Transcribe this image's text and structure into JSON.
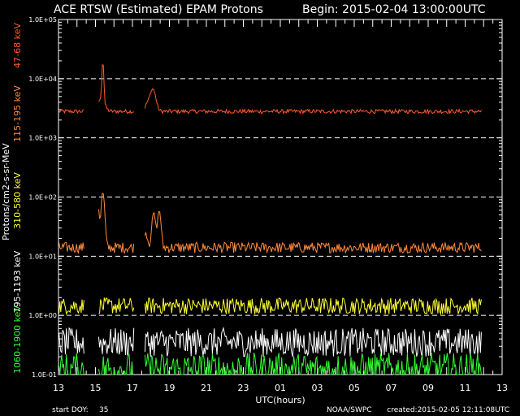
{
  "chart_data": {
    "type": "line",
    "title": "ACE RTSW (Estimated) EPAM Protons",
    "begin_label": "Begin: 2015-02-04 13:00:00UTC",
    "xlabel": "UTC(hours)",
    "ylabel": "Protons/cm2-s-sr-MeV",
    "yscale": "log",
    "ylim": [
      0.1,
      100000
    ],
    "y_ticks": [
      {
        "value": 0.1,
        "label": "1.0E-01"
      },
      {
        "value": 1,
        "label": "1.0E+00"
      },
      {
        "value": 10,
        "label": "1.0E+01"
      },
      {
        "value": 100,
        "label": "1.0E+02"
      },
      {
        "value": 1000,
        "label": "1.0E+03"
      },
      {
        "value": 10000,
        "label": "1.0E+04"
      },
      {
        "value": 100000,
        "label": "1.0E+05"
      }
    ],
    "dashed_grid_at": [
      1,
      10,
      100,
      1000,
      10000
    ],
    "x_ticks": [
      "13",
      "15",
      "17",
      "19",
      "21",
      "23",
      "01",
      "03",
      "05",
      "07",
      "09",
      "11",
      "13"
    ],
    "xlim_hours": [
      0,
      48
    ],
    "data_gaps_hours": [
      [
        2.8,
        4.3
      ],
      [
        8.2,
        9.3
      ]
    ],
    "series": [
      {
        "name": "47-68 keV",
        "color": "#ff5a2a",
        "base": 2800,
        "noise": 0.05,
        "peaks": [
          [
            3.7,
            1.1,
            0.25
          ],
          [
            4.8,
            5.5,
            0.12
          ],
          [
            4.6,
            0.6,
            0.5
          ],
          [
            10.2,
            1.4,
            0.4
          ],
          [
            9.6,
            0.3,
            0.3
          ]
        ]
      },
      {
        "name": "115-195 keV",
        "color": "#ff8a3a",
        "base": 14,
        "noise": 0.13,
        "peaks": [
          [
            3.4,
            0.6,
            0.3
          ],
          [
            4.2,
            5.5,
            0.22
          ],
          [
            4.8,
            7.5,
            0.22
          ],
          [
            9.4,
            0.8,
            0.3
          ],
          [
            10.3,
            2.8,
            0.25
          ],
          [
            10.9,
            3.2,
            0.22
          ]
        ]
      },
      {
        "name": "310-580 keV",
        "color": "#ffff33",
        "base": 1.45,
        "noise": 0.2,
        "peaks": []
      },
      {
        "name": "795-1193 keV",
        "color": "#ffffff",
        "base": 0.35,
        "noise": 0.35,
        "peaks": []
      },
      {
        "name": "1060-1900 keV",
        "color": "#33ff33",
        "base": 0.12,
        "noise": 0.42,
        "peaks": []
      }
    ],
    "legend_labels": [
      {
        "text": "47-68 keV",
        "color": "#ff5a2a"
      },
      {
        "text": "115-195 keV",
        "color": "#ff8a3a"
      },
      {
        "text": "310-580 keV",
        "color": "#ffff33"
      },
      {
        "text": "795-1193 keV",
        "color": "#ffffff"
      },
      {
        "text": "1060-1900 keV",
        "color": "#33ff33"
      }
    ]
  },
  "footer": {
    "start_doy_label": "start DOY:",
    "start_doy_value": "35",
    "source": "NOAA/SWPC",
    "created": "created:2015-02-05 12:11:08UTC"
  }
}
